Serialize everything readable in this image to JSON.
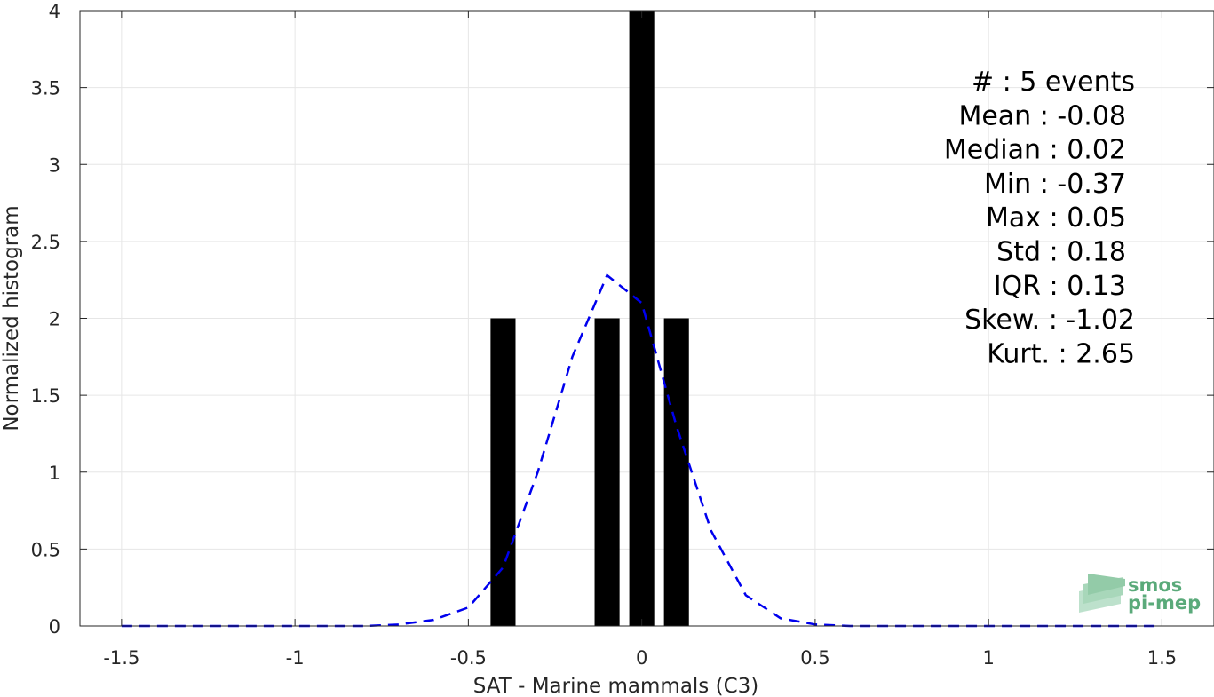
{
  "chart_data": {
    "type": "bar",
    "xlabel": "SAT - Marine mammals (C3)",
    "ylabel": "Normalized histogram",
    "xlim": [
      -1.5,
      1.5
    ],
    "ylim": [
      0,
      4
    ],
    "xticks": [
      "-1.5",
      "-1",
      "-0.5",
      "0",
      "0.5",
      "1",
      "1.5"
    ],
    "yticks": [
      "0",
      "0.5",
      "1",
      "1.5",
      "2",
      "2.5",
      "3",
      "3.5",
      "4"
    ],
    "grid": true,
    "bin_width": 0.1,
    "bars": [
      {
        "x": -0.4,
        "value": 2
      },
      {
        "x": -0.1,
        "value": 2
      },
      {
        "x": 0.0,
        "value": 4
      },
      {
        "x": 0.1,
        "value": 2
      }
    ],
    "bar_color": "#000000",
    "curve": {
      "style": "dashed",
      "color": "#0000ee",
      "x": [
        -1.5,
        -1.4,
        -1.3,
        -1.2,
        -1.1,
        -1.0,
        -0.9,
        -0.8,
        -0.7,
        -0.6,
        -0.5,
        -0.4,
        -0.3,
        -0.2,
        -0.1,
        0.0,
        0.1,
        0.2,
        0.3,
        0.4,
        0.5,
        0.6,
        0.7,
        0.8,
        0.9,
        1.0,
        1.1,
        1.2,
        1.3,
        1.4,
        1.5
      ],
      "y": [
        0,
        0,
        0,
        0,
        0,
        0,
        0,
        0,
        0.01,
        0.04,
        0.12,
        0.38,
        1.0,
        1.75,
        2.28,
        2.1,
        1.3,
        0.62,
        0.2,
        0.05,
        0.01,
        0,
        0,
        0,
        0,
        0,
        0,
        0,
        0,
        0,
        0
      ]
    },
    "stats": [
      "#  : 5 events",
      "Mean : -0.08",
      "Median : 0.02",
      "Min : -0.37",
      "Max : 0.05",
      "Std : 0.18",
      "IQR : 0.13",
      "Skew. : -1.02",
      "Kurt. : 2.65"
    ]
  },
  "logo": {
    "line1": "smos",
    "line2": "pi-mep",
    "color": "#5aaa7a"
  }
}
